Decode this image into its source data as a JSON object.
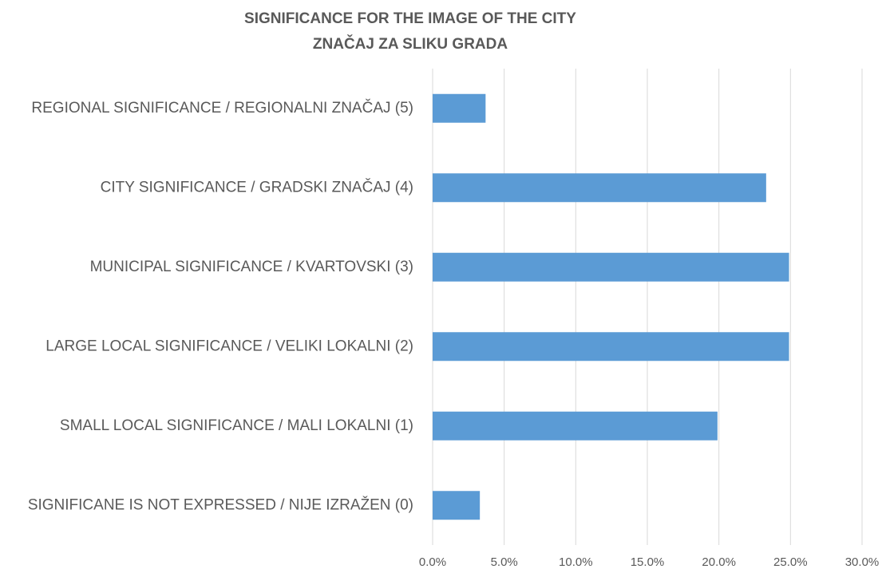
{
  "chart_data": {
    "type": "bar",
    "orientation": "horizontal",
    "title": "SIGNIFICANCE FOR THE IMAGE OF THE CITY",
    "subtitle": "ZNAČAJ ZA SLIKU GRADA",
    "categories": [
      "REGIONAL SIGNIFICANCE / REGIONALNI ZNAČAJ (5)",
      "CITY SIGNIFICANCE / GRADSKI ZNAČAJ (4)",
      "MUNICIPAL SIGNIFICANCE / KVARTOVSKI (3)",
      "LARGE LOCAL SIGNIFICANCE / VELIKI LOKALNI (2)",
      "SMALL LOCAL SIGNIFICANCE / MALI LOKALNI (1)",
      "SIGNIFICANE IS NOT EXPRESSED / NIJE IZRAŽEN (0)"
    ],
    "values": [
      3.7,
      23.3,
      24.9,
      24.9,
      19.9,
      3.3
    ],
    "color": "#5b9bd5",
    "xlim": [
      0,
      30
    ],
    "xticks": [
      {
        "value": 0,
        "label": "0.0%"
      },
      {
        "value": 5,
        "label": "5.0%"
      },
      {
        "value": 10,
        "label": "10.0%"
      },
      {
        "value": 15,
        "label": "15.0%"
      },
      {
        "value": 20,
        "label": "20.0%"
      },
      {
        "value": 25,
        "label": "25.0%"
      },
      {
        "value": 30,
        "label": "30.0%"
      }
    ],
    "grid": true
  }
}
